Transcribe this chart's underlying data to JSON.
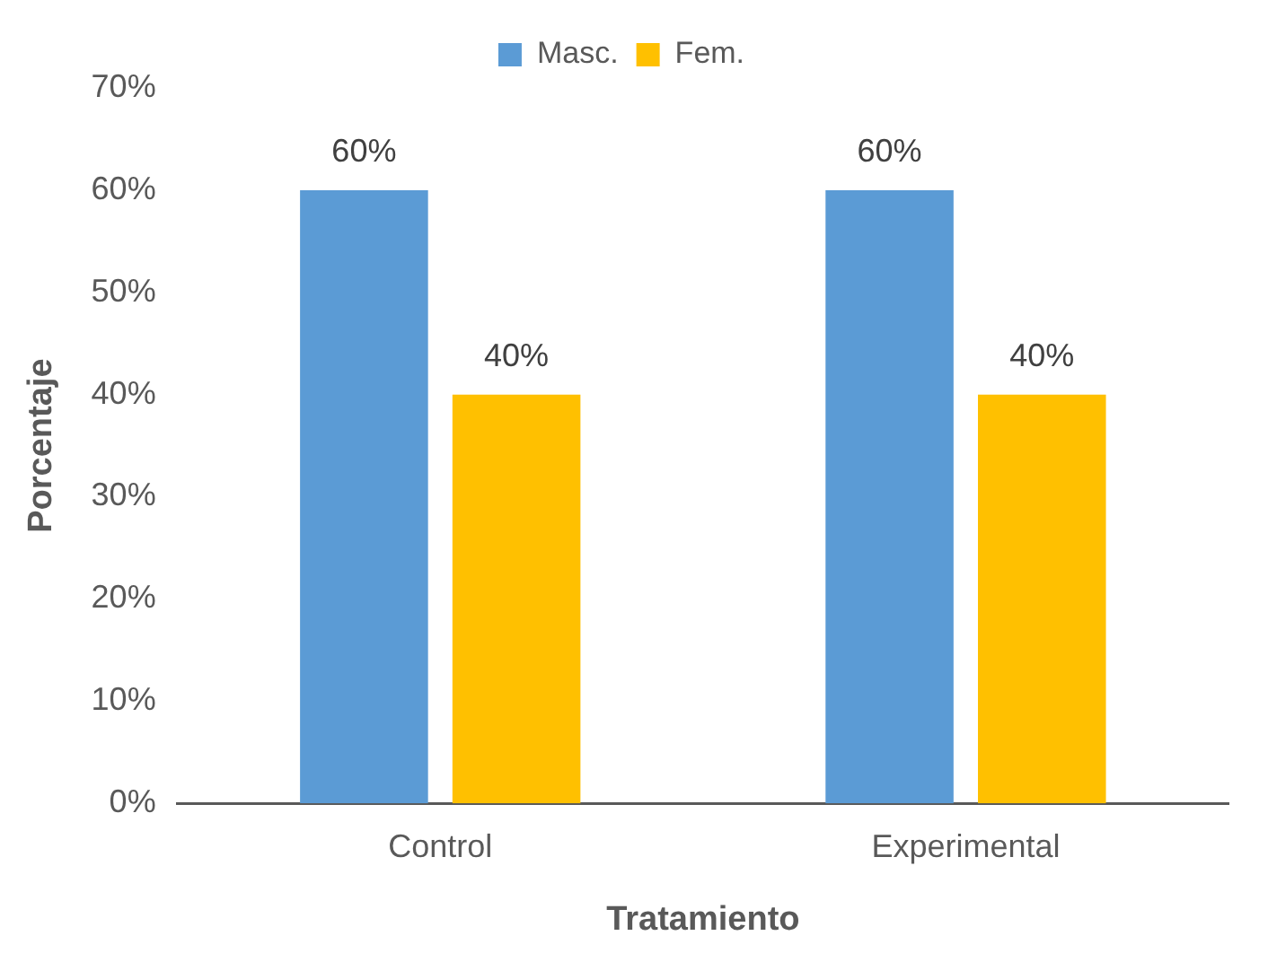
{
  "chart_data": {
    "type": "bar",
    "xlabel": "Tratamiento",
    "ylabel": "Porcentaje",
    "categories": [
      "Control",
      "Experimental"
    ],
    "series": [
      {
        "name": "Masc.",
        "color": "#5b9bd5",
        "values": [
          60,
          60
        ],
        "value_labels": [
          "60%",
          "60%"
        ]
      },
      {
        "name": "Fem.",
        "color": "#ffc000",
        "values": [
          40,
          40
        ],
        "value_labels": [
          "40%",
          "40%"
        ]
      }
    ],
    "ylim": [
      0,
      70
    ],
    "yticks": [
      {
        "value": 0,
        "label": "0%"
      },
      {
        "value": 10,
        "label": "10%"
      },
      {
        "value": 20,
        "label": "20%"
      },
      {
        "value": 30,
        "label": "30%"
      },
      {
        "value": 40,
        "label": "40%"
      },
      {
        "value": 50,
        "label": "50%"
      },
      {
        "value": 60,
        "label": "60%"
      },
      {
        "value": 70,
        "label": "70%"
      }
    ],
    "grid": false,
    "legend": "top"
  }
}
